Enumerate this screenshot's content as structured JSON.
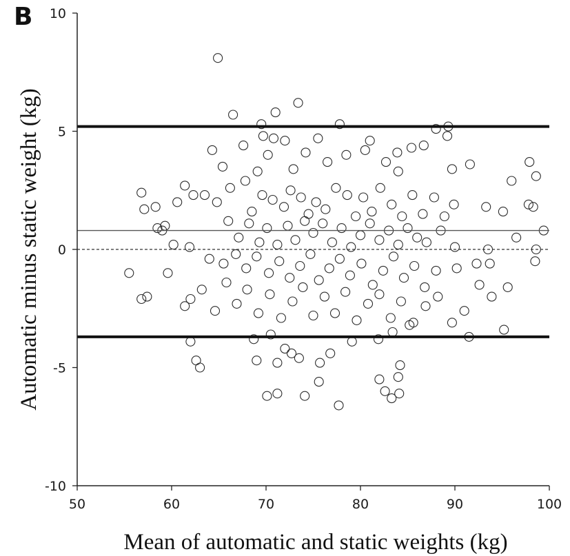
{
  "chart_data": {
    "type": "scatter",
    "panel_label": "B",
    "title": "",
    "xlabel": "Mean of automatic and static weights (kg)",
    "ylabel": "Automatic minus static weight (kg)",
    "xlim": [
      50,
      100
    ],
    "ylim": [
      -10,
      10
    ],
    "x_ticks": [
      50,
      60,
      70,
      80,
      90,
      100
    ],
    "y_ticks": [
      -10,
      -5,
      0,
      5,
      10
    ],
    "x_tick_labels": [
      "50",
      "60",
      "70",
      "80",
      "90",
      "100"
    ],
    "y_tick_labels": [
      "-10",
      "-5",
      "0",
      "5",
      "10"
    ],
    "grid": false,
    "marker": "open-circle",
    "reference_lines": {
      "upper_limit": 5.2,
      "mean_difference": 0.8,
      "lower_limit": -3.7,
      "zero_line": 0
    },
    "points": [
      [
        64.9,
        8.1
      ],
      [
        73.4,
        6.2
      ],
      [
        66.5,
        5.7
      ],
      [
        71.0,
        5.8
      ],
      [
        69.5,
        5.3
      ],
      [
        77.8,
        5.3
      ],
      [
        89.3,
        5.2
      ],
      [
        88.0,
        5.1
      ],
      [
        89.2,
        4.8
      ],
      [
        69.7,
        4.8
      ],
      [
        70.8,
        4.7
      ],
      [
        72.0,
        4.6
      ],
      [
        75.5,
        4.7
      ],
      [
        81.0,
        4.6
      ],
      [
        85.4,
        4.3
      ],
      [
        86.7,
        4.4
      ],
      [
        80.5,
        4.2
      ],
      [
        83.9,
        4.1
      ],
      [
        64.3,
        4.2
      ],
      [
        67.6,
        4.4
      ],
      [
        74.2,
        4.1
      ],
      [
        70.2,
        4.0
      ],
      [
        78.5,
        4.0
      ],
      [
        76.5,
        3.7
      ],
      [
        82.7,
        3.7
      ],
      [
        91.6,
        3.6
      ],
      [
        97.9,
        3.7
      ],
      [
        65.4,
        3.5
      ],
      [
        69.1,
        3.3
      ],
      [
        72.9,
        3.4
      ],
      [
        84.0,
        3.3
      ],
      [
        89.7,
        3.4
      ],
      [
        96.0,
        2.9
      ],
      [
        98.6,
        3.1
      ],
      [
        62.3,
        2.3
      ],
      [
        60.6,
        2.0
      ],
      [
        61.4,
        2.7
      ],
      [
        56.8,
        2.4
      ],
      [
        57.1,
        1.7
      ],
      [
        58.3,
        1.8
      ],
      [
        58.5,
        0.9
      ],
      [
        59.3,
        1.0
      ],
      [
        59.0,
        0.8
      ],
      [
        60.2,
        0.2
      ],
      [
        61.9,
        0.1
      ],
      [
        63.5,
        2.3
      ],
      [
        64.8,
        2.0
      ],
      [
        66.2,
        2.6
      ],
      [
        67.8,
        2.9
      ],
      [
        68.5,
        1.6
      ],
      [
        69.6,
        2.3
      ],
      [
        70.7,
        2.1
      ],
      [
        71.9,
        1.8
      ],
      [
        72.6,
        2.5
      ],
      [
        73.7,
        2.2
      ],
      [
        74.5,
        1.5
      ],
      [
        75.3,
        2.0
      ],
      [
        76.3,
        1.7
      ],
      [
        77.4,
        2.6
      ],
      [
        78.6,
        2.3
      ],
      [
        79.5,
        1.4
      ],
      [
        80.3,
        2.2
      ],
      [
        81.2,
        1.6
      ],
      [
        82.1,
        2.6
      ],
      [
        83.3,
        1.9
      ],
      [
        84.4,
        1.4
      ],
      [
        85.5,
        2.3
      ],
      [
        86.6,
        1.5
      ],
      [
        87.8,
        2.2
      ],
      [
        88.9,
        1.4
      ],
      [
        89.9,
        1.9
      ],
      [
        93.3,
        1.8
      ],
      [
        95.1,
        1.6
      ],
      [
        97.8,
        1.9
      ],
      [
        98.3,
        1.8
      ],
      [
        66.0,
        1.2
      ],
      [
        67.1,
        0.5
      ],
      [
        68.2,
        1.1
      ],
      [
        69.3,
        0.3
      ],
      [
        70.1,
        0.9
      ],
      [
        71.2,
        0.2
      ],
      [
        72.3,
        1.0
      ],
      [
        73.1,
        0.4
      ],
      [
        74.1,
        1.2
      ],
      [
        75.0,
        0.7
      ],
      [
        76.0,
        1.1
      ],
      [
        77.0,
        0.3
      ],
      [
        78.0,
        0.9
      ],
      [
        79.0,
        0.1
      ],
      [
        80.0,
        0.6
      ],
      [
        81.0,
        1.1
      ],
      [
        82.0,
        0.4
      ],
      [
        83.0,
        0.8
      ],
      [
        84.0,
        0.2
      ],
      [
        85.0,
        0.9
      ],
      [
        86.0,
        0.5
      ],
      [
        87.0,
        0.3
      ],
      [
        88.5,
        0.8
      ],
      [
        90.0,
        0.1
      ],
      [
        93.5,
        0.0
      ],
      [
        96.5,
        0.5
      ],
      [
        98.6,
        0.0
      ],
      [
        99.4,
        0.8
      ],
      [
        98.5,
        -0.5
      ],
      [
        64.0,
        -0.4
      ],
      [
        65.5,
        -0.6
      ],
      [
        66.8,
        -0.2
      ],
      [
        67.9,
        -0.8
      ],
      [
        69.0,
        -0.3
      ],
      [
        70.3,
        -1.0
      ],
      [
        71.4,
        -0.5
      ],
      [
        72.5,
        -1.2
      ],
      [
        73.6,
        -0.7
      ],
      [
        74.7,
        -0.2
      ],
      [
        75.6,
        -1.3
      ],
      [
        76.7,
        -0.8
      ],
      [
        77.8,
        -0.4
      ],
      [
        78.9,
        -1.1
      ],
      [
        80.1,
        -0.6
      ],
      [
        81.3,
        -1.5
      ],
      [
        82.4,
        -0.9
      ],
      [
        83.5,
        -0.3
      ],
      [
        84.6,
        -1.2
      ],
      [
        85.7,
        -0.7
      ],
      [
        86.8,
        -1.6
      ],
      [
        88.0,
        -0.9
      ],
      [
        90.2,
        -0.8
      ],
      [
        92.3,
        -0.6
      ],
      [
        93.7,
        -0.6
      ],
      [
        55.5,
        -1.0
      ],
      [
        56.8,
        -2.1
      ],
      [
        57.4,
        -2.0
      ],
      [
        59.6,
        -1.0
      ],
      [
        61.4,
        -2.4
      ],
      [
        62.0,
        -2.1
      ],
      [
        63.2,
        -1.7
      ],
      [
        64.6,
        -2.6
      ],
      [
        65.8,
        -1.4
      ],
      [
        66.9,
        -2.3
      ],
      [
        68.0,
        -1.7
      ],
      [
        69.2,
        -2.7
      ],
      [
        70.4,
        -1.9
      ],
      [
        71.6,
        -2.9
      ],
      [
        72.8,
        -2.2
      ],
      [
        73.9,
        -1.6
      ],
      [
        75.0,
        -2.8
      ],
      [
        76.2,
        -2.0
      ],
      [
        77.3,
        -2.7
      ],
      [
        78.4,
        -1.8
      ],
      [
        79.6,
        -3.0
      ],
      [
        80.8,
        -2.3
      ],
      [
        82.0,
        -1.9
      ],
      [
        83.2,
        -2.9
      ],
      [
        84.3,
        -2.2
      ],
      [
        85.6,
        -3.1
      ],
      [
        86.9,
        -2.4
      ],
      [
        88.2,
        -2.0
      ],
      [
        89.7,
        -3.1
      ],
      [
        91.0,
        -2.6
      ],
      [
        92.6,
        -1.5
      ],
      [
        93.9,
        -2.0
      ],
      [
        95.6,
        -1.6
      ],
      [
        62.0,
        -3.9
      ],
      [
        62.6,
        -4.7
      ],
      [
        63.0,
        -5.0
      ],
      [
        68.7,
        -3.8
      ],
      [
        69.0,
        -4.7
      ],
      [
        70.5,
        -3.6
      ],
      [
        71.2,
        -4.8
      ],
      [
        72.0,
        -4.2
      ],
      [
        72.7,
        -4.4
      ],
      [
        73.5,
        -4.6
      ],
      [
        75.7,
        -4.8
      ],
      [
        76.8,
        -4.4
      ],
      [
        79.1,
        -3.9
      ],
      [
        81.9,
        -3.8
      ],
      [
        83.4,
        -3.5
      ],
      [
        84.2,
        -4.9
      ],
      [
        85.2,
        -3.2
      ],
      [
        91.5,
        -3.7
      ],
      [
        95.2,
        -3.4
      ],
      [
        75.6,
        -5.6
      ],
      [
        82.0,
        -5.5
      ],
      [
        82.6,
        -6.0
      ],
      [
        83.3,
        -6.3
      ],
      [
        84.1,
        -6.1
      ],
      [
        84.0,
        -5.4
      ],
      [
        70.1,
        -6.2
      ],
      [
        71.2,
        -6.1
      ],
      [
        74.1,
        -6.2
      ],
      [
        77.7,
        -6.6
      ]
    ]
  }
}
